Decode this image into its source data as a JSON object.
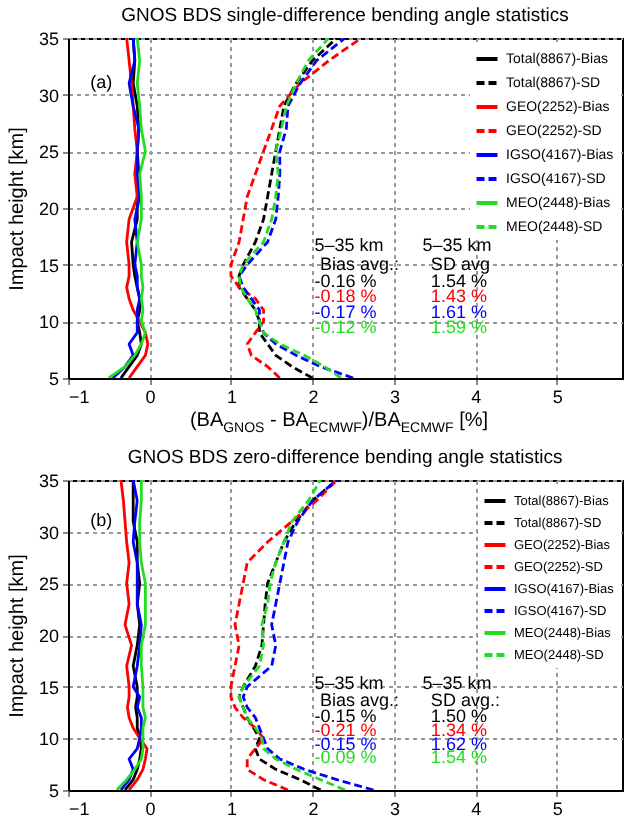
{
  "chart_data": [
    {
      "type": "line",
      "orientation": "horizontal",
      "title": "GNOS BDS single-difference bending angle statistics",
      "xlabel": "(BA$_{GNOS}$ - BA$_{ECMWF}$)/BA$_{ECMWF}$ [%]",
      "ylabel": "Impact height [km]",
      "xlim": [
        -1,
        5.8
      ],
      "xticks": [
        -1,
        0,
        1,
        2,
        3,
        4,
        5
      ],
      "ylim": [
        5,
        35
      ],
      "yticks": [
        5,
        10,
        15,
        20,
        25,
        30,
        35
      ],
      "grid": true,
      "legend": "top right",
      "annotations": [
        "(a)",
        "5–35 km",
        "Bias avg.:",
        "5–35 km",
        "SD  avg",
        "-0.16 %",
        "-0.18 %",
        "-0.17 %",
        "-0.12 %",
        "1.54 %",
        "1.43 %",
        "1.61 %",
        "1.59 %"
      ],
      "x": [
        5,
        6,
        7,
        8,
        9,
        10,
        11,
        12,
        13,
        14,
        15,
        17,
        19,
        21,
        23,
        25,
        27,
        29,
        31,
        33,
        35
      ],
      "series": [
        {
          "name": "Total(8867)-Bias",
          "color": "#000000",
          "line_style": "solid",
          "values": [
            -0.35,
            -0.25,
            -0.15,
            -0.1,
            -0.12,
            -0.15,
            -0.12,
            -0.12,
            -0.15,
            -0.18,
            -0.2,
            -0.22,
            -0.15,
            -0.15,
            -0.13,
            -0.15,
            -0.13,
            -0.15,
            -0.2,
            -0.18,
            -0.2
          ]
        },
        {
          "name": "Total(8867)-SD",
          "color": "#000000",
          "line_style": "dashed",
          "values": [
            2.0,
            1.75,
            1.55,
            1.45,
            1.35,
            1.35,
            1.3,
            1.2,
            1.1,
            1.1,
            1.15,
            1.3,
            1.4,
            1.45,
            1.5,
            1.55,
            1.6,
            1.65,
            1.8,
            2.0,
            2.3
          ]
        },
        {
          "name": "GEO(2252)-Bias",
          "color": "#ff0000",
          "line_style": "solid",
          "values": [
            -0.25,
            -0.15,
            -0.05,
            -0.02,
            -0.05,
            -0.12,
            -0.2,
            -0.25,
            -0.28,
            -0.25,
            -0.25,
            -0.28,
            -0.25,
            -0.15,
            -0.18,
            -0.15,
            -0.18,
            -0.2,
            -0.22,
            -0.25,
            -0.28
          ]
        },
        {
          "name": "GEO(2252)-SD",
          "color": "#ff0000",
          "line_style": "dashed",
          "values": [
            1.6,
            1.45,
            1.25,
            1.2,
            1.3,
            1.4,
            1.4,
            1.3,
            1.1,
            1.0,
            1.0,
            1.1,
            1.15,
            1.2,
            1.3,
            1.4,
            1.5,
            1.6,
            1.85,
            2.2,
            2.6
          ]
        },
        {
          "name": "IGSO(4167)-Bias",
          "color": "#0000ff",
          "line_style": "solid",
          "values": [
            -0.45,
            -0.3,
            -0.2,
            -0.25,
            -0.15,
            -0.15,
            -0.15,
            -0.12,
            -0.15,
            -0.15,
            -0.18,
            -0.15,
            -0.18,
            -0.12,
            -0.15,
            -0.15,
            -0.13,
            -0.2,
            -0.25,
            -0.18,
            -0.2
          ]
        },
        {
          "name": "IGSO(4167)-SD",
          "color": "#0000ff",
          "line_style": "dashed",
          "values": [
            2.5,
            2.1,
            1.8,
            1.55,
            1.4,
            1.35,
            1.35,
            1.25,
            1.15,
            1.1,
            1.2,
            1.45,
            1.55,
            1.58,
            1.6,
            1.6,
            1.68,
            1.7,
            1.85,
            2.05,
            2.4
          ]
        },
        {
          "name": "MEO(2448)-Bias",
          "color": "#22dd22",
          "line_style": "solid",
          "values": [
            -0.5,
            -0.3,
            -0.18,
            -0.1,
            -0.05,
            -0.1,
            -0.08,
            -0.1,
            -0.08,
            -0.1,
            -0.1,
            -0.15,
            -0.1,
            -0.1,
            -0.12,
            -0.05,
            -0.1,
            -0.12,
            -0.15,
            -0.12,
            -0.15
          ]
        },
        {
          "name": "MEO(2448)-SD",
          "color": "#22dd22",
          "line_style": "dashed",
          "values": [
            2.35,
            2.15,
            1.9,
            1.6,
            1.4,
            1.35,
            1.3,
            1.2,
            1.12,
            1.1,
            1.15,
            1.4,
            1.5,
            1.55,
            1.58,
            1.55,
            1.62,
            1.68,
            1.8,
            1.95,
            2.2
          ]
        }
      ]
    },
    {
      "type": "line",
      "orientation": "horizontal",
      "title": "GNOS BDS zero-difference bending angle statistics",
      "ylabel": "Impact height [km]",
      "xlim": [
        -1,
        5.8
      ],
      "xticks": [
        -1,
        0,
        1,
        2,
        3,
        4,
        5
      ],
      "ylim": [
        5,
        35
      ],
      "yticks": [
        5,
        10,
        15,
        20,
        25,
        30,
        35
      ],
      "grid": true,
      "legend": "top right",
      "annotations": [
        "(b)",
        "5–35 km",
        "Bias avg.:",
        "5–35 km",
        "SD  avg.:",
        "-0.15 %",
        "-0.21 %",
        "-0.15 %",
        "-0.09 %",
        "1.50 %",
        "1.34 %",
        "1.62 %",
        "1.54 %"
      ],
      "x": [
        5,
        6,
        7,
        8,
        9,
        10,
        11,
        12,
        13,
        14,
        15,
        17,
        19,
        21,
        23,
        25,
        27,
        29,
        31,
        33,
        35
      ],
      "series": [
        {
          "name": "Total(8867)-Bias",
          "color": "#000000",
          "line_style": "solid",
          "values": [
            -0.3,
            -0.2,
            -0.15,
            -0.12,
            -0.1,
            -0.12,
            -0.15,
            -0.15,
            -0.17,
            -0.15,
            -0.15,
            -0.2,
            -0.15,
            -0.12,
            -0.15,
            -0.12,
            -0.15,
            -0.15,
            -0.2,
            -0.2,
            -0.2
          ]
        },
        {
          "name": "Total(8867)-SD",
          "color": "#000000",
          "line_style": "dashed",
          "values": [
            2.1,
            1.85,
            1.55,
            1.35,
            1.3,
            1.35,
            1.28,
            1.2,
            1.15,
            1.1,
            1.15,
            1.3,
            1.38,
            1.4,
            1.42,
            1.45,
            1.55,
            1.65,
            1.8,
            2.0,
            2.3
          ]
        },
        {
          "name": "GEO(2252)-Bias",
          "color": "#ff0000",
          "line_style": "solid",
          "values": [
            -0.25,
            -0.15,
            -0.08,
            -0.05,
            -0.03,
            -0.12,
            -0.2,
            -0.25,
            -0.27,
            -0.25,
            -0.25,
            -0.28,
            -0.22,
            -0.3,
            -0.25,
            -0.28,
            -0.25,
            -0.28,
            -0.3,
            -0.32,
            -0.35
          ]
        },
        {
          "name": "GEO(2252)-SD",
          "color": "#ff0000",
          "line_style": "dashed",
          "values": [
            1.7,
            1.4,
            1.2,
            1.2,
            1.3,
            1.4,
            1.3,
            1.15,
            1.05,
            1.0,
            1.0,
            1.05,
            1.1,
            1.05,
            1.1,
            1.15,
            1.2,
            1.45,
            1.75,
            2.05,
            2.3
          ]
        },
        {
          "name": "IGSO(4167)-Bias",
          "color": "#0000ff",
          "line_style": "solid",
          "values": [
            -0.35,
            -0.25,
            -0.2,
            -0.25,
            -0.15,
            -0.12,
            -0.1,
            -0.1,
            -0.15,
            -0.12,
            -0.2,
            -0.15,
            -0.12,
            -0.1,
            -0.15,
            -0.15,
            -0.15,
            -0.2,
            -0.18,
            -0.15,
            -0.2
          ]
        },
        {
          "name": "IGSO(4167)-SD",
          "color": "#0000ff",
          "line_style": "dashed",
          "values": [
            2.75,
            2.3,
            1.9,
            1.6,
            1.45,
            1.4,
            1.35,
            1.3,
            1.2,
            1.15,
            1.2,
            1.5,
            1.55,
            1.5,
            1.55,
            1.6,
            1.65,
            1.7,
            1.82,
            2.0,
            2.3
          ]
        },
        {
          "name": "MEO(2448)-Bias",
          "color": "#22dd22",
          "line_style": "solid",
          "values": [
            -0.4,
            -0.28,
            -0.18,
            -0.1,
            -0.08,
            -0.08,
            -0.08,
            -0.05,
            -0.08,
            -0.08,
            -0.08,
            -0.1,
            -0.1,
            -0.05,
            -0.05,
            -0.05,
            -0.1,
            -0.12,
            -0.12,
            -0.1,
            -0.1
          ]
        },
        {
          "name": "MEO(2448)-SD",
          "color": "#22dd22",
          "line_style": "dashed",
          "values": [
            2.4,
            2.1,
            1.8,
            1.55,
            1.4,
            1.38,
            1.3,
            1.2,
            1.15,
            1.1,
            1.15,
            1.35,
            1.4,
            1.38,
            1.45,
            1.48,
            1.55,
            1.65,
            1.75,
            1.95,
            2.1
          ]
        }
      ]
    }
  ]
}
